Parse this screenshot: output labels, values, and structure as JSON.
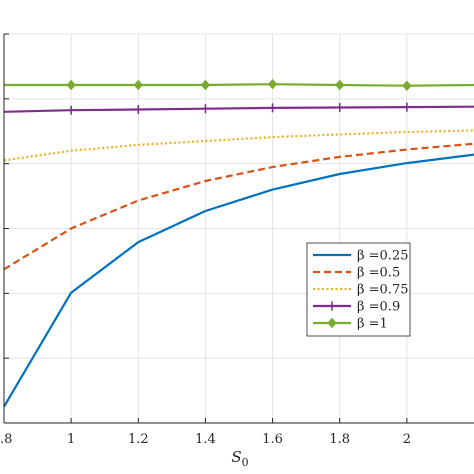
{
  "chart_data": {
    "type": "line",
    "xlabel": "S",
    "xlabel_subscript": "0",
    "ylabel": "",
    "xlim": [
      0.8,
      2.2
    ],
    "ylim": [
      0.0,
      1.0
    ],
    "grid": true,
    "legend_position": "center-right",
    "x_ticks": [
      0.8,
      1.0,
      1.2,
      1.4,
      1.6,
      1.8,
      2.0
    ],
    "x_tick_labels": [
      ".8",
      "1",
      "1.2",
      "1.4",
      "1.6",
      "1.8",
      "2"
    ],
    "y_ticks": [
      0.0,
      0.1667,
      0.3333,
      0.5,
      0.6667,
      0.8333,
      1.0
    ],
    "x": [
      0.8,
      1.0,
      1.2,
      1.4,
      1.6,
      1.8,
      2.0,
      2.2
    ],
    "series": [
      {
        "name": "β =0.25",
        "color": "#0072BD",
        "style": "solid",
        "marker": "none",
        "values": [
          0.042,
          0.335,
          0.465,
          0.545,
          0.6,
          0.64,
          0.668,
          0.69
        ]
      },
      {
        "name": "β =0.5",
        "color": "#D95319",
        "style": "dashed",
        "marker": "none",
        "values": [
          0.395,
          0.5,
          0.572,
          0.622,
          0.658,
          0.684,
          0.703,
          0.718
        ]
      },
      {
        "name": "β =0.75",
        "color": "#EDB120",
        "style": "dotted",
        "marker": "none",
        "values": [
          0.675,
          0.7,
          0.715,
          0.725,
          0.735,
          0.742,
          0.748,
          0.752
        ]
      },
      {
        "name": "β =0.9",
        "color": "#7E2F8E",
        "style": "solid",
        "marker": "plus",
        "values": [
          0.8,
          0.804,
          0.806,
          0.808,
          0.81,
          0.811,
          0.812,
          0.813
        ]
      },
      {
        "name": "β =1",
        "color": "#77AC30",
        "style": "solid",
        "marker": "diamond",
        "values": [
          0.869,
          0.869,
          0.869,
          0.869,
          0.871,
          0.869,
          0.867,
          0.869
        ]
      }
    ]
  }
}
